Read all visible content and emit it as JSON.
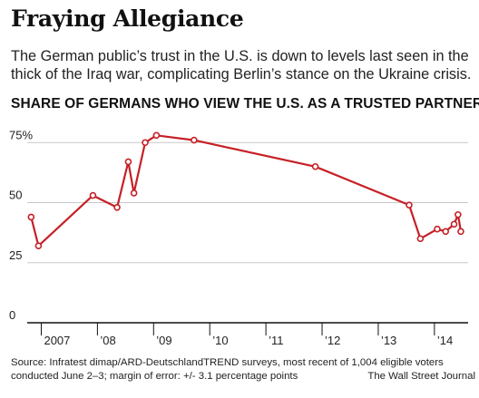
{
  "header": {
    "title": "Fraying Allegiance",
    "subtitle": "The German public’s trust in the U.S. is down to levels last seen in the thick of the Iraq war, complicating Berlin’s stance on the Ukraine crisis.",
    "chart_heading": "SHARE OF GERMANS WHO VIEW THE U.S. AS A TRUSTED PARTNER"
  },
  "footer": {
    "source_line1": "Source: Infratest dimap/ARD-DeutschlandTREND surveys, most recent of 1,004 eligible voters",
    "source_line2": "conducted June 2–3; margin of error: +/- 3.1 percentage points",
    "credit": "The Wall Street Journal"
  },
  "colors": {
    "line": "#c62026",
    "grid": "#c8c8c8",
    "axis": "#111111",
    "text": "#222222"
  },
  "chart_data": {
    "type": "line",
    "title": "SHARE OF GERMANS WHO VIEW THE U.S. AS A TRUSTED PARTNER",
    "xlabel": "",
    "ylabel": "",
    "xlim": [
      2006.75,
      2014.6
    ],
    "ylim": [
      0,
      80
    ],
    "grid": true,
    "y_ticks": [
      {
        "value": 0,
        "label": "0"
      },
      {
        "value": 25,
        "label": "25"
      },
      {
        "value": 50,
        "label": "50"
      },
      {
        "value": 75,
        "label": "75%"
      }
    ],
    "x_ticks": [
      {
        "value": 2007,
        "label": "2007"
      },
      {
        "value": 2008,
        "label": "’08"
      },
      {
        "value": 2009,
        "label": "’09"
      },
      {
        "value": 2010,
        "label": "’10"
      },
      {
        "value": 2011,
        "label": "’11"
      },
      {
        "value": 2012,
        "label": "’12"
      },
      {
        "value": 2013,
        "label": "’13"
      },
      {
        "value": 2014,
        "label": "’14"
      }
    ],
    "series": [
      {
        "points": [
          {
            "x": 2006.82,
            "y": 44
          },
          {
            "x": 2006.95,
            "y": 32
          },
          {
            "x": 2007.92,
            "y": 53
          },
          {
            "x": 2008.35,
            "y": 48
          },
          {
            "x": 2008.55,
            "y": 67
          },
          {
            "x": 2008.65,
            "y": 54
          },
          {
            "x": 2008.85,
            "y": 75
          },
          {
            "x": 2009.05,
            "y": 78
          },
          {
            "x": 2009.72,
            "y": 76
          },
          {
            "x": 2011.88,
            "y": 65
          },
          {
            "x": 2013.55,
            "y": 49
          },
          {
            "x": 2013.75,
            "y": 35
          },
          {
            "x": 2014.05,
            "y": 39
          },
          {
            "x": 2014.2,
            "y": 38
          },
          {
            "x": 2014.35,
            "y": 41
          },
          {
            "x": 2014.42,
            "y": 45
          },
          {
            "x": 2014.47,
            "y": 38
          }
        ]
      }
    ]
  }
}
